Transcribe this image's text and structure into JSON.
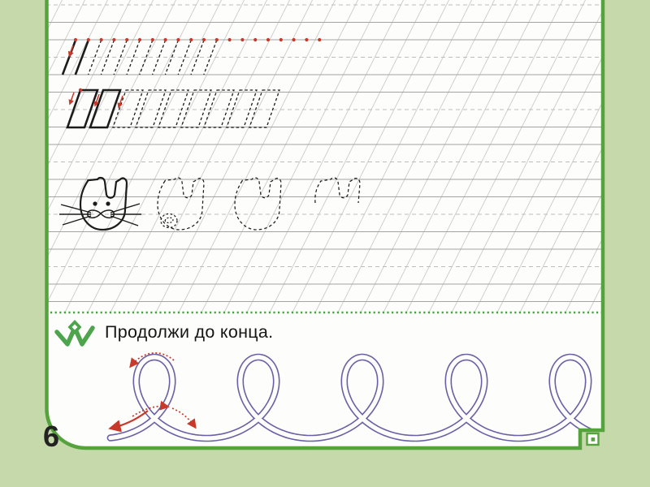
{
  "page": {
    "number": "6"
  },
  "task": {
    "icon": "w-squiggle-icon",
    "instruction": "Продолжи до конца."
  },
  "rows": {
    "slant_strokes": {
      "dots": 20,
      "solid": 2,
      "dashed": 10
    },
    "parallelograms": {
      "solid": 2,
      "dashed": 7,
      "start_dots": 1
    },
    "letters": {
      "glyphs": [
        "cat-solid-face",
        "cat-dashed-small-face",
        "dashed-plain",
        "dashed-partial"
      ]
    }
  },
  "trace": {
    "loops": 5
  },
  "colors": {
    "background": "#c6d9ab",
    "paper": "#fdfdfb",
    "border_green": "#55a33c",
    "separator_green": "#4aa045",
    "icon_green": "#4da44d",
    "ink": "#1c1c1c",
    "grid_solid": "#a3a3a3",
    "grid_dashed": "#bdbdbd",
    "grid_diagonal": "#cfcfcf",
    "red": "#c8392b",
    "purple": "#6b60a5"
  }
}
